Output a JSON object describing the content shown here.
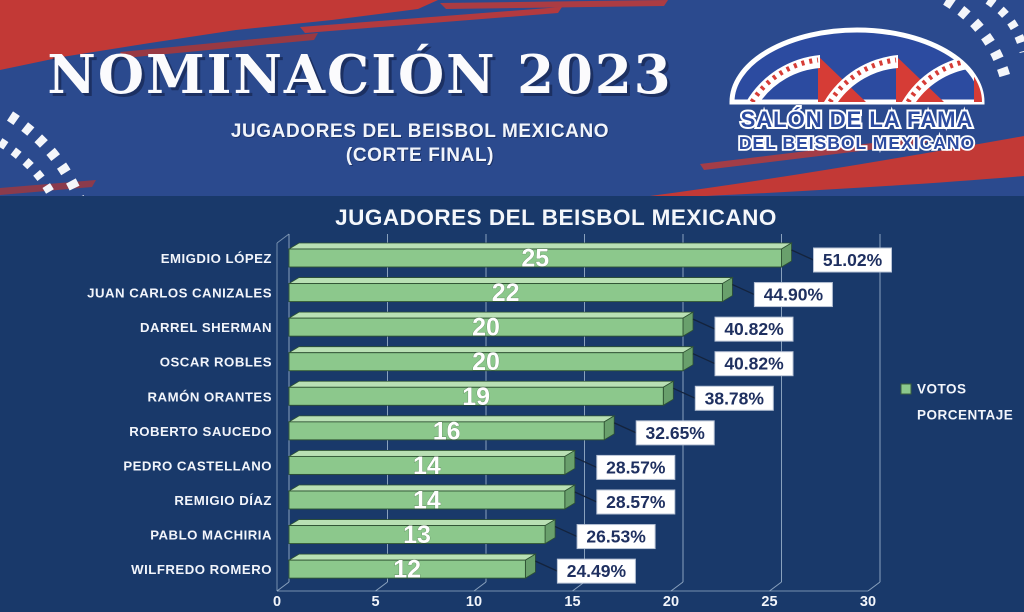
{
  "header": {
    "title": "NOMINACIÓN 2023",
    "subtitle_line1": "JUGADORES DEL BEISBOL MEXICANO",
    "subtitle_line2": "(CORTE FINAL)",
    "logo": {
      "line1": "SALÓN DE LA FAMA",
      "line2": "DEL BEISBOL MEXICANO"
    }
  },
  "chart_data": {
    "type": "bar",
    "orientation": "horizontal",
    "title": "JUGADORES DEL BEISBOL MEXICANO",
    "categories": [
      "EMIGDIO LÓPEZ",
      "JUAN CARLOS CANIZALES",
      "DARREL SHERMAN",
      "OSCAR ROBLES",
      "RAMÓN ORANTES",
      "ROBERTO SAUCEDO",
      "PEDRO CASTELLANO",
      "REMIGIO DÍAZ",
      "PABLO MACHIRIA",
      "WILFREDO ROMERO"
    ],
    "series": [
      {
        "name": "VOTOS",
        "values": [
          25,
          22,
          20,
          20,
          19,
          16,
          14,
          14,
          13,
          12
        ]
      },
      {
        "name": "PORCENTAJE",
        "values": [
          "51.02%",
          "44.90%",
          "40.82%",
          "40.82%",
          "38.78%",
          "32.65%",
          "28.57%",
          "28.57%",
          "26.53%",
          "24.49%"
        ]
      }
    ],
    "xlim": [
      0,
      30
    ],
    "x_ticks": [
      0,
      5,
      10,
      15,
      20,
      25,
      30
    ],
    "grid": true,
    "legend": [
      "VOTOS",
      "PORCENTAJE"
    ],
    "legend_position": "right",
    "style_3d": true
  },
  "colors": {
    "header_blue": "#2b4a8e",
    "accent_red": "#c23936",
    "chart_bg": "#19396a",
    "bar_front": "#8cc88c",
    "bar_top": "#b9e0b4",
    "bar_side": "#69a06c",
    "bar_outline": "#2e5233",
    "grid_line": "#9db4cc",
    "label_navy": "#1f3060",
    "callout_box_bg": "#ffffff",
    "text_white": "#f2f5fb",
    "logo_blue": "#2c4ba0"
  }
}
